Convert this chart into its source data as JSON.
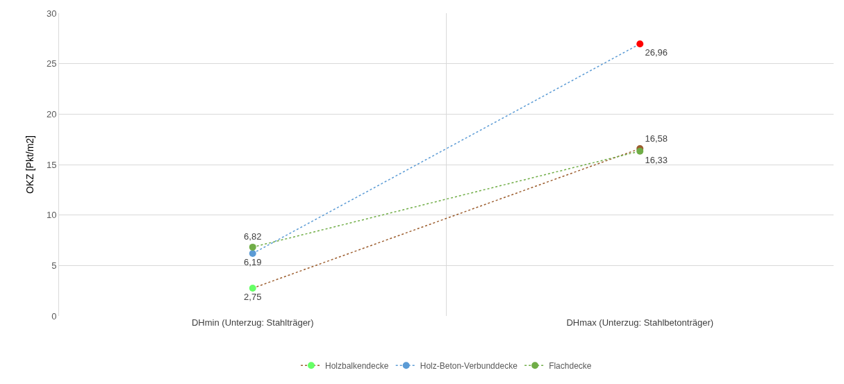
{
  "chart_data": {
    "type": "line",
    "ylabel": "OKZ [Pkt/m2]",
    "categories": [
      "DHmin (Unterzug: Stahlträger)",
      "DHmax (Unterzug: Stahlbetonträger)"
    ],
    "series": [
      {
        "name": "Holzbalkendecke",
        "color": "#9c5d2e",
        "colors": [
          "#66ff66",
          "#9c5d2e"
        ],
        "values": [
          2.75,
          16.58
        ],
        "value_labels": [
          "2,75",
          "16,58"
        ]
      },
      {
        "name": "Holz-Beton-Verbunddecke",
        "color": "#5b9bd5",
        "colors": [
          "#5b9bd5",
          "#ff0000"
        ],
        "values": [
          6.19,
          26.96
        ],
        "value_labels": [
          "6,19",
          "26,96"
        ]
      },
      {
        "name": "Flachdecke",
        "color": "#70ad47",
        "colors": [
          "#70ad47",
          "#70ad47"
        ],
        "values": [
          6.82,
          16.33
        ],
        "value_labels": [
          "6,82",
          "16,33"
        ]
      }
    ],
    "ylim": [
      0,
      30
    ],
    "yticks": [
      0,
      5,
      10,
      15,
      20,
      25,
      30
    ],
    "grid": true,
    "legend": "bottom",
    "marker": "circle",
    "line_style": "dotted"
  }
}
